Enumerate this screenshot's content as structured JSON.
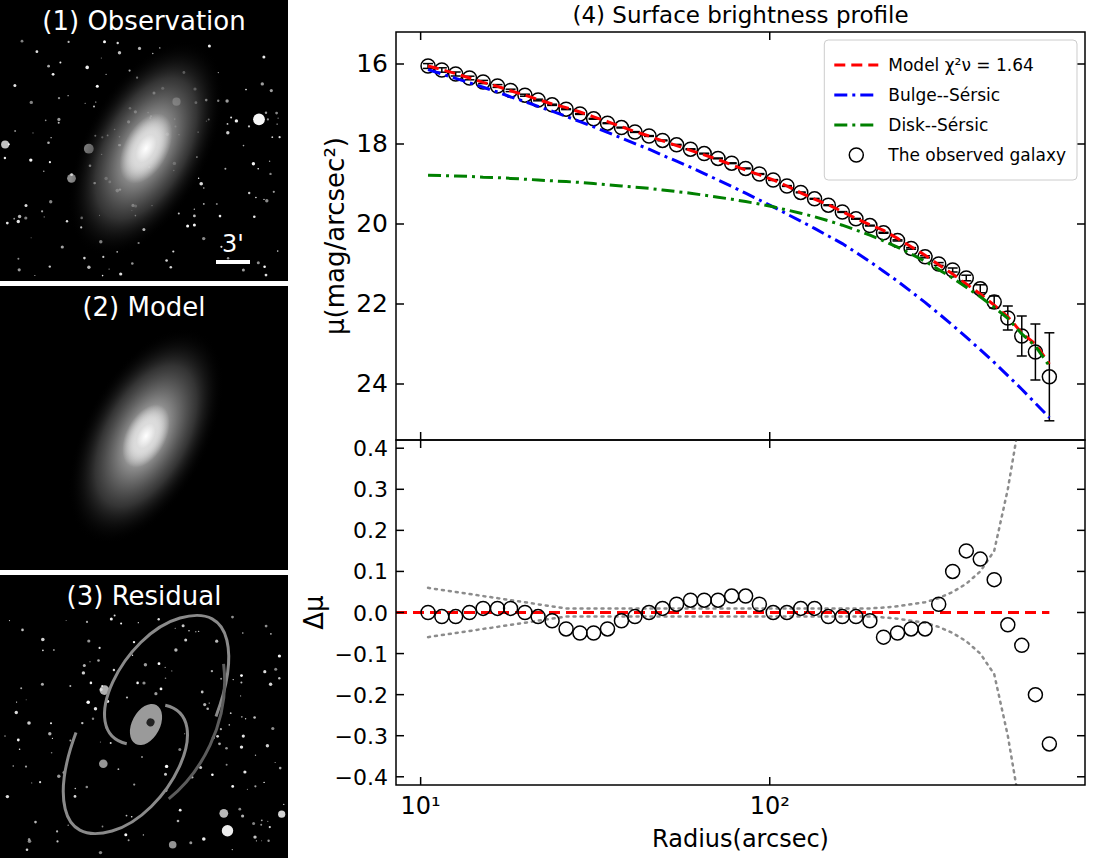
{
  "image_panels": [
    {
      "title": "(1) Observation",
      "scale_bar": "3'"
    },
    {
      "title": "(2) Model"
    },
    {
      "title": "(3) Residual"
    }
  ],
  "chart_data": [
    {
      "type": "line",
      "title": "(4) Surface brightness profile",
      "y_label": "μ(mag/arcsec²)",
      "log": "x",
      "tick_labels": "y",
      "legend": "upper right",
      "x": [
        10.5,
        11.5,
        12.6,
        13.8,
        15.1,
        16.6,
        18.1,
        19.9,
        21.7,
        23.8,
        26.1,
        28.6,
        31.3,
        34.3,
        37.6,
        41.1,
        45.1,
        49.3,
        54.1,
        59.3,
        64.9,
        71.1,
        77.8,
        85.3,
        93.4,
        102.3,
        112.0,
        122.7,
        134.4,
        147.2,
        161.4,
        176.6,
        193.6,
        211.8,
        232.3,
        254.1,
        278.6,
        304.8,
        334.2,
        365.6,
        400.9,
        439.5,
        480.8,
        527.2,
        576.8,
        632.4
      ],
      "xlim": [
        8.5,
        800
      ],
      "xticks": [
        {
          "value": 10,
          "label": "10¹"
        },
        {
          "value": 100,
          "label": "10²"
        }
      ],
      "ylim": [
        25.4,
        15.2
      ],
      "yticks": [
        16,
        18,
        20,
        22,
        24
      ],
      "series": [
        {
          "name": "Model χ²ν = 1.64",
          "color": "#ff0000",
          "line_style": "dashed",
          "values": [
            16.05,
            16.14,
            16.24,
            16.35,
            16.46,
            16.56,
            16.67,
            16.78,
            16.89,
            17.0,
            17.09,
            17.2,
            17.32,
            17.44,
            17.57,
            17.69,
            17.8,
            17.92,
            18.04,
            18.16,
            18.27,
            18.39,
            18.52,
            18.65,
            18.77,
            18.9,
            19.05,
            19.22,
            19.38,
            19.52,
            19.69,
            19.86,
            20.02,
            20.16,
            20.36,
            20.57,
            20.78,
            21.02,
            21.25,
            21.5,
            21.75,
            22.03,
            22.32,
            22.72,
            23.0,
            23.5
          ]
        },
        {
          "name": "Bulge--Sérsic",
          "color": "#0000ff",
          "line_style": "dashdot",
          "values": [
            16.14,
            16.25,
            16.36,
            16.47,
            16.58,
            16.7,
            16.82,
            16.94,
            17.06,
            17.18,
            17.31,
            17.44,
            17.57,
            17.71,
            17.85,
            17.99,
            18.13,
            18.28,
            18.43,
            18.58,
            18.74,
            18.9,
            19.06,
            19.23,
            19.4,
            19.57,
            19.75,
            19.93,
            20.11,
            20.3,
            20.49,
            20.71,
            20.94,
            21.18,
            21.43,
            21.69,
            21.96,
            22.24,
            22.53,
            22.83,
            23.14,
            23.46,
            23.79,
            24.13,
            24.48,
            24.84
          ]
        },
        {
          "name": "Disk--Sérsic",
          "color": "#008000",
          "line_style": "dashdot",
          "values": [
            18.78,
            18.79,
            18.8,
            18.81,
            18.83,
            18.84,
            18.86,
            18.88,
            18.9,
            18.92,
            18.94,
            18.96,
            18.99,
            19.02,
            19.05,
            19.08,
            19.11,
            19.15,
            19.19,
            19.23,
            19.28,
            19.33,
            19.38,
            19.44,
            19.5,
            19.57,
            19.65,
            19.73,
            19.82,
            19.92,
            20.03,
            20.15,
            20.28,
            20.42,
            20.58,
            20.75,
            20.93,
            21.14,
            21.35,
            21.58,
            21.82,
            22.08,
            22.36,
            22.75,
            23.05,
            23.55
          ]
        },
        {
          "name": "The observed galaxy",
          "type": "scatter",
          "marker": "open-circle",
          "color": "#000000",
          "values": [
            16.05,
            16.15,
            16.25,
            16.35,
            16.45,
            16.55,
            16.66,
            16.78,
            16.9,
            17.02,
            17.13,
            17.25,
            17.37,
            17.48,
            17.59,
            17.7,
            17.8,
            17.91,
            18.02,
            18.13,
            18.24,
            18.36,
            18.48,
            18.61,
            18.75,
            18.9,
            19.05,
            19.21,
            19.37,
            19.53,
            19.7,
            19.87,
            20.04,
            20.22,
            20.41,
            20.61,
            20.82,
            21.0,
            21.15,
            21.35,
            21.62,
            21.95,
            22.35,
            22.8,
            23.2,
            23.82
          ],
          "errors": [
            0.06,
            0.055,
            0.05,
            0.045,
            0.04,
            0.035,
            0.03,
            0.025,
            0.02,
            0.015,
            0.01,
            0.01,
            0.01,
            0.01,
            0.01,
            0.01,
            0.01,
            0.01,
            0.01,
            0.01,
            0.01,
            0.01,
            0.01,
            0.01,
            0.01,
            0.01,
            0.01,
            0.01,
            0.01,
            0.01,
            0.01,
            0.01,
            0.01,
            0.012,
            0.015,
            0.02,
            0.025,
            0.035,
            0.05,
            0.07,
            0.1,
            0.15,
            0.3,
            0.5,
            0.7,
            1.1
          ]
        }
      ]
    },
    {
      "type": "scatter",
      "x_label": "Radius(arcsec)",
      "y_label": "Δμ",
      "log": "x",
      "x": [
        10.5,
        11.5,
        12.6,
        13.8,
        15.1,
        16.6,
        18.1,
        19.9,
        21.7,
        23.8,
        26.1,
        28.6,
        31.3,
        34.3,
        37.6,
        41.1,
        45.1,
        49.3,
        54.1,
        59.3,
        64.9,
        71.1,
        77.8,
        85.3,
        93.4,
        102.3,
        112.0,
        122.7,
        134.4,
        147.2,
        161.4,
        176.6,
        193.6,
        211.8,
        232.3,
        254.1,
        278.6,
        304.8,
        334.2,
        365.6,
        400.9,
        439.5,
        480.8,
        527.2,
        576.8,
        632.4
      ],
      "xlim": [
        8.5,
        800
      ],
      "xticks": [
        {
          "value": 10,
          "label": "10¹"
        },
        {
          "value": 100,
          "label": "10²"
        }
      ],
      "ylim": [
        -0.42,
        0.42
      ],
      "yticks": [
        0.4,
        0.3,
        0.2,
        0.1,
        {
          "value": 0,
          "label": "0.0"
        },
        {
          "value": -0.1,
          "label": "−0.1"
        },
        {
          "value": -0.2,
          "label": "−0.2"
        },
        {
          "value": -0.3,
          "label": "−0.3"
        },
        {
          "value": -0.4,
          "label": "−0.4"
        }
      ],
      "series": [
        {
          "marker": "open-circle",
          "color": "#000000",
          "values": [
            0.0,
            -0.01,
            -0.01,
            0.0,
            0.01,
            0.01,
            0.01,
            0.0,
            -0.01,
            -0.02,
            -0.04,
            -0.05,
            -0.05,
            -0.04,
            -0.02,
            -0.01,
            0.0,
            0.01,
            0.02,
            0.03,
            0.03,
            0.03,
            0.04,
            0.04,
            0.02,
            0.0,
            0.0,
            0.01,
            0.01,
            -0.01,
            -0.01,
            -0.01,
            -0.02,
            -0.06,
            -0.05,
            -0.04,
            -0.04,
            0.02,
            0.1,
            0.15,
            0.13,
            0.08,
            -0.03,
            -0.08,
            -0.2,
            -0.32
          ],
          "errors": [
            0.06,
            0.055,
            0.05,
            0.045,
            0.04,
            0.035,
            0.03,
            0.025,
            0.02,
            0.015,
            0.01,
            0.01,
            0.01,
            0.01,
            0.01,
            0.01,
            0.01,
            0.01,
            0.01,
            0.01,
            0.01,
            0.01,
            0.01,
            0.01,
            0.01,
            0.01,
            0.01,
            0.01,
            0.01,
            0.01,
            0.01,
            0.01,
            0.01,
            0.012,
            0.015,
            0.02,
            0.025,
            0.035,
            0.05,
            0.07,
            0.1,
            0.15,
            0.3,
            0.5,
            0.7,
            1.1
          ]
        }
      ]
    }
  ]
}
